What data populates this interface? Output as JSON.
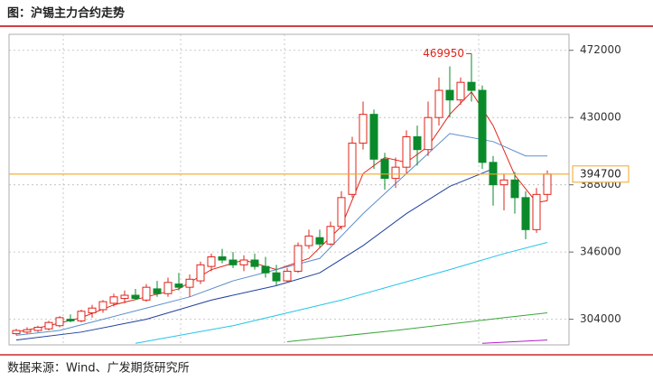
{
  "header": {
    "title": "图：沪锡主力合约走势"
  },
  "footer": {
    "source": "数据来源：Wind、广发期货研究所"
  },
  "chart_data": {
    "type": "candlestick",
    "up_color": "#e2231a",
    "down_color": "#0b8a2b",
    "ylim": [
      288000,
      482000
    ],
    "yticks": [
      304000,
      346000,
      388000,
      430000,
      472000
    ],
    "grid": true,
    "last_price": 394700,
    "last_price_color": "#f5a623",
    "open": [
      295000,
      296000,
      297000,
      298000,
      300000,
      304000,
      303000,
      308000,
      310000,
      314000,
      317000,
      319000,
      316000,
      323000,
      320000,
      326000,
      324000,
      328000,
      337000,
      343000,
      341000,
      338000,
      341000,
      337000,
      333000,
      328000,
      334000,
      350000,
      355000,
      351000,
      362000,
      382000,
      414000,
      432000,
      404000,
      392000,
      399000,
      418000,
      410000,
      430000,
      447000,
      441000,
      452000,
      447000,
      402000,
      388000,
      391000,
      380000,
      360000,
      382000
    ],
    "high": [
      298000,
      299000,
      300000,
      303000,
      306000,
      307000,
      310000,
      313000,
      316000,
      320000,
      322000,
      323000,
      326000,
      328000,
      330000,
      333000,
      332000,
      340000,
      345000,
      348000,
      346000,
      344000,
      345000,
      343000,
      338000,
      336000,
      352000,
      360000,
      360000,
      365000,
      384000,
      418000,
      440000,
      435000,
      408000,
      405000,
      422000,
      425000,
      440000,
      455000,
      462000,
      455000,
      469950,
      450000,
      406000,
      395000,
      396000,
      384000,
      386000,
      397000
    ],
    "low": [
      294000,
      295000,
      296000,
      297000,
      299000,
      302000,
      302000,
      305000,
      308000,
      312000,
      314000,
      316000,
      315000,
      318000,
      318000,
      322000,
      318000,
      326000,
      334000,
      339000,
      336000,
      334000,
      335000,
      330000,
      325000,
      327000,
      333000,
      348000,
      349000,
      350000,
      360000,
      380000,
      410000,
      398000,
      385000,
      386000,
      395000,
      400000,
      406000,
      425000,
      430000,
      438000,
      440000,
      398000,
      375000,
      372000,
      370000,
      354000,
      358000,
      378000
    ],
    "close": [
      297000,
      297500,
      299000,
      302000,
      305000,
      303000,
      309000,
      311000,
      315000,
      318000,
      319000,
      317000,
      324000,
      320000,
      327000,
      324000,
      329000,
      338000,
      343000,
      341000,
      338000,
      341000,
      337000,
      333000,
      328000,
      334000,
      350000,
      356000,
      351000,
      362000,
      380000,
      414000,
      432000,
      404000,
      392000,
      399000,
      418000,
      410000,
      430000,
      447000,
      441000,
      452000,
      447000,
      402000,
      388000,
      391000,
      380000,
      360000,
      382000,
      394700
    ],
    "lines": [
      {
        "color": "#e2231a",
        "x": [
          0,
          3,
          6,
          9,
          12,
          15,
          18,
          21,
          24,
          27,
          30,
          32,
          34,
          36,
          38,
          40,
          42,
          44,
          46,
          48,
          49
        ],
        "values": [
          296000,
          300000,
          305000,
          313000,
          318000,
          323000,
          335000,
          341000,
          335000,
          342000,
          362000,
          395000,
          405000,
          402000,
          412000,
          432000,
          446000,
          425000,
          394000,
          377000,
          378000
        ]
      },
      {
        "color": "#5b8fc9",
        "x": [
          0,
          4,
          8,
          12,
          16,
          20,
          24,
          28,
          32,
          36,
          40,
          44,
          47,
          49
        ],
        "values": [
          294000,
          297000,
          304000,
          311000,
          318000,
          328000,
          335000,
          342000,
          370000,
          395000,
          420000,
          415000,
          406000,
          406000
        ]
      },
      {
        "color": "#1f3f9e",
        "x": [
          0,
          6,
          12,
          18,
          24,
          28,
          32,
          36,
          40,
          44
        ],
        "values": [
          291000,
          296000,
          304000,
          316000,
          325000,
          333000,
          350000,
          370000,
          387000,
          398000
        ]
      },
      {
        "color": "#23c4e8",
        "x": [
          11,
          20,
          30,
          40,
          45,
          49
        ],
        "values": [
          289000,
          300000,
          316000,
          335000,
          345000,
          352000
        ]
      },
      {
        "color": "#3aa63a",
        "x": [
          25,
          35,
          45,
          49
        ],
        "values": [
          290000,
          297000,
          305000,
          308000
        ]
      },
      {
        "color": "#b01fc8",
        "x": [
          43,
          49
        ],
        "values": [
          289000,
          291000
        ]
      }
    ]
  }
}
